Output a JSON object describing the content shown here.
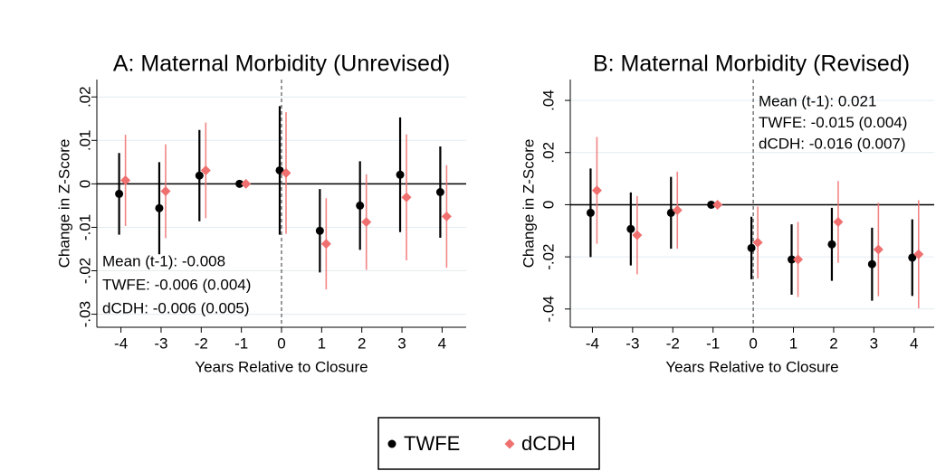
{
  "chart_data": [
    {
      "type": "errorbar",
      "title": "A: Maternal Morbidity (Unrevised)",
      "y_label": "Change in Z-Score",
      "x_label": "Years Relative to Closure",
      "x": [
        -4,
        -3,
        -2,
        -1,
        0,
        1,
        2,
        3,
        4
      ],
      "series": [
        {
          "name": "TWFE",
          "color": "#000000",
          "marker": "circle",
          "values": [
            -0.0023,
            -0.0056,
            0.0019,
            0,
            0.0031,
            -0.0108,
            -0.005,
            0.0021,
            -0.0019
          ],
          "errors": [
            0.0094,
            0.0106,
            0.0105,
            0,
            0.0148,
            0.0096,
            0.0102,
            0.0132,
            0.0105
          ]
        },
        {
          "name": "dCDH",
          "color": "#f07070",
          "marker": "diamond",
          "values": [
            0.0008,
            -0.0017,
            0.0031,
            0,
            0.0025,
            -0.0138,
            -0.0088,
            -0.0031,
            -0.0075
          ],
          "errors": [
            0.0105,
            0.0108,
            0.011,
            0,
            0.014,
            0.0105,
            0.011,
            0.0145,
            0.0118
          ]
        }
      ],
      "xlim": [
        -4.6,
        4.6
      ],
      "xticks": [
        -4,
        -3,
        -2,
        -1,
        0,
        1,
        2,
        3,
        4
      ],
      "ylim": [
        -0.033,
        0.024
      ],
      "yticks": [
        {
          "value": -0.03,
          "label": "-.03"
        },
        {
          "value": -0.02,
          "label": "-.02"
        },
        {
          "value": -0.01,
          "label": "-.01"
        },
        0,
        {
          "value": 0.01,
          "label": ".01"
        },
        {
          "value": 0.02,
          "label": ".02"
        }
      ],
      "grid": true,
      "hline": 0,
      "vline": 0,
      "annotations": [
        "Mean (t-1): -0.008",
        "TWFE: -0.006 (0.004)",
        "dCDH: -0.006 (0.005)"
      ],
      "annotation_corner": "bottom-left",
      "legend_position": "bottom"
    },
    {
      "type": "errorbar",
      "title": "B: Maternal Morbidity (Revised)",
      "y_label": "Change in Z-Score",
      "x_label": "Years Relative to Closure",
      "x": [
        -4,
        -3,
        -2,
        -1,
        0,
        1,
        2,
        3,
        4
      ],
      "series": [
        {
          "name": "TWFE",
          "color": "#000000",
          "marker": "circle",
          "values": [
            -0.0031,
            -0.0093,
            -0.0031,
            0,
            -0.0166,
            -0.021,
            -0.0152,
            -0.0228,
            -0.0203
          ],
          "errors": [
            0.017,
            0.014,
            0.0138,
            0,
            0.012,
            0.0135,
            0.014,
            0.014,
            0.0147
          ]
        },
        {
          "name": "dCDH",
          "color": "#f07070",
          "marker": "diamond",
          "values": [
            0.0055,
            -0.0117,
            -0.0021,
            0,
            -0.0145,
            -0.021,
            -0.0066,
            -0.0172,
            -0.019
          ],
          "errors": [
            0.0205,
            0.015,
            0.0148,
            0,
            0.0138,
            0.0144,
            0.0157,
            0.0179,
            0.0207
          ]
        }
      ],
      "xlim": [
        -4.55,
        4.5
      ],
      "xticks": [
        -4,
        -3,
        -2,
        -1,
        0,
        1,
        2,
        3,
        4
      ],
      "ylim": [
        -0.047,
        0.048
      ],
      "yticks": [
        {
          "value": -0.04,
          "label": "-.04"
        },
        {
          "value": -0.02,
          "label": "-.02"
        },
        0,
        {
          "value": 0.02,
          "label": ".02"
        },
        {
          "value": 0.04,
          "label": ".04"
        }
      ],
      "grid": true,
      "hline": 0,
      "vline": 0,
      "annotations": [
        "Mean (t-1): 0.021",
        "TWFE: -0.015 (0.004)",
        "dCDH: -0.016 (0.007)"
      ],
      "annotation_corner": "top-right"
    }
  ]
}
